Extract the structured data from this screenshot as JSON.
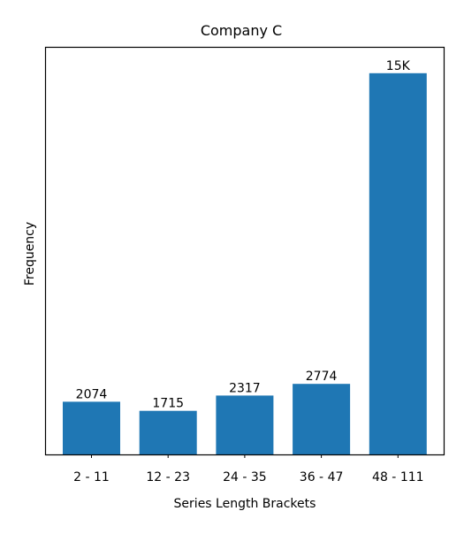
{
  "chart_data": {
    "type": "bar",
    "title": "Company C",
    "xlabel": "Series Length Brackets",
    "ylabel": "Frequency",
    "categories": [
      "2 - 11",
      "12 - 23",
      "24 - 35",
      "36 - 47",
      "48 - 111"
    ],
    "values": [
      2074,
      1715,
      2317,
      2774,
      15000
    ],
    "data_labels": [
      "2074",
      "1715",
      "2317",
      "2774",
      "15K"
    ],
    "ylim": [
      0,
      16000
    ],
    "y_ticks_visible": false,
    "grid": false,
    "legend": "none",
    "bar_color": "#1f77b4"
  }
}
